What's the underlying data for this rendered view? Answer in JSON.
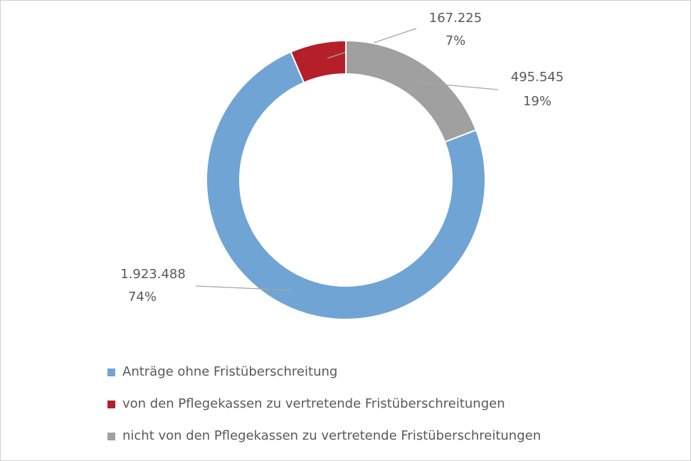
{
  "chart_data": {
    "type": "donut",
    "categories": [
      "Anträge ohne Fristüberschreitung",
      "von den Pflegekassen zu vertretende Fristüberschreitungen",
      "nicht von den Pflegekassen zu vertretende Fristüberschreitungen"
    ],
    "series": [
      {
        "values": [
          1923488,
          167225,
          495545
        ],
        "value_labels": [
          "1.923.488",
          "167.225",
          "495.545"
        ],
        "percentages": [
          74,
          7,
          19
        ],
        "percent_labels": [
          "74%",
          "7%",
          "19%"
        ],
        "colors": [
          "#70a4d4",
          "#b41f2a",
          "#a0a0a0"
        ]
      }
    ]
  }
}
